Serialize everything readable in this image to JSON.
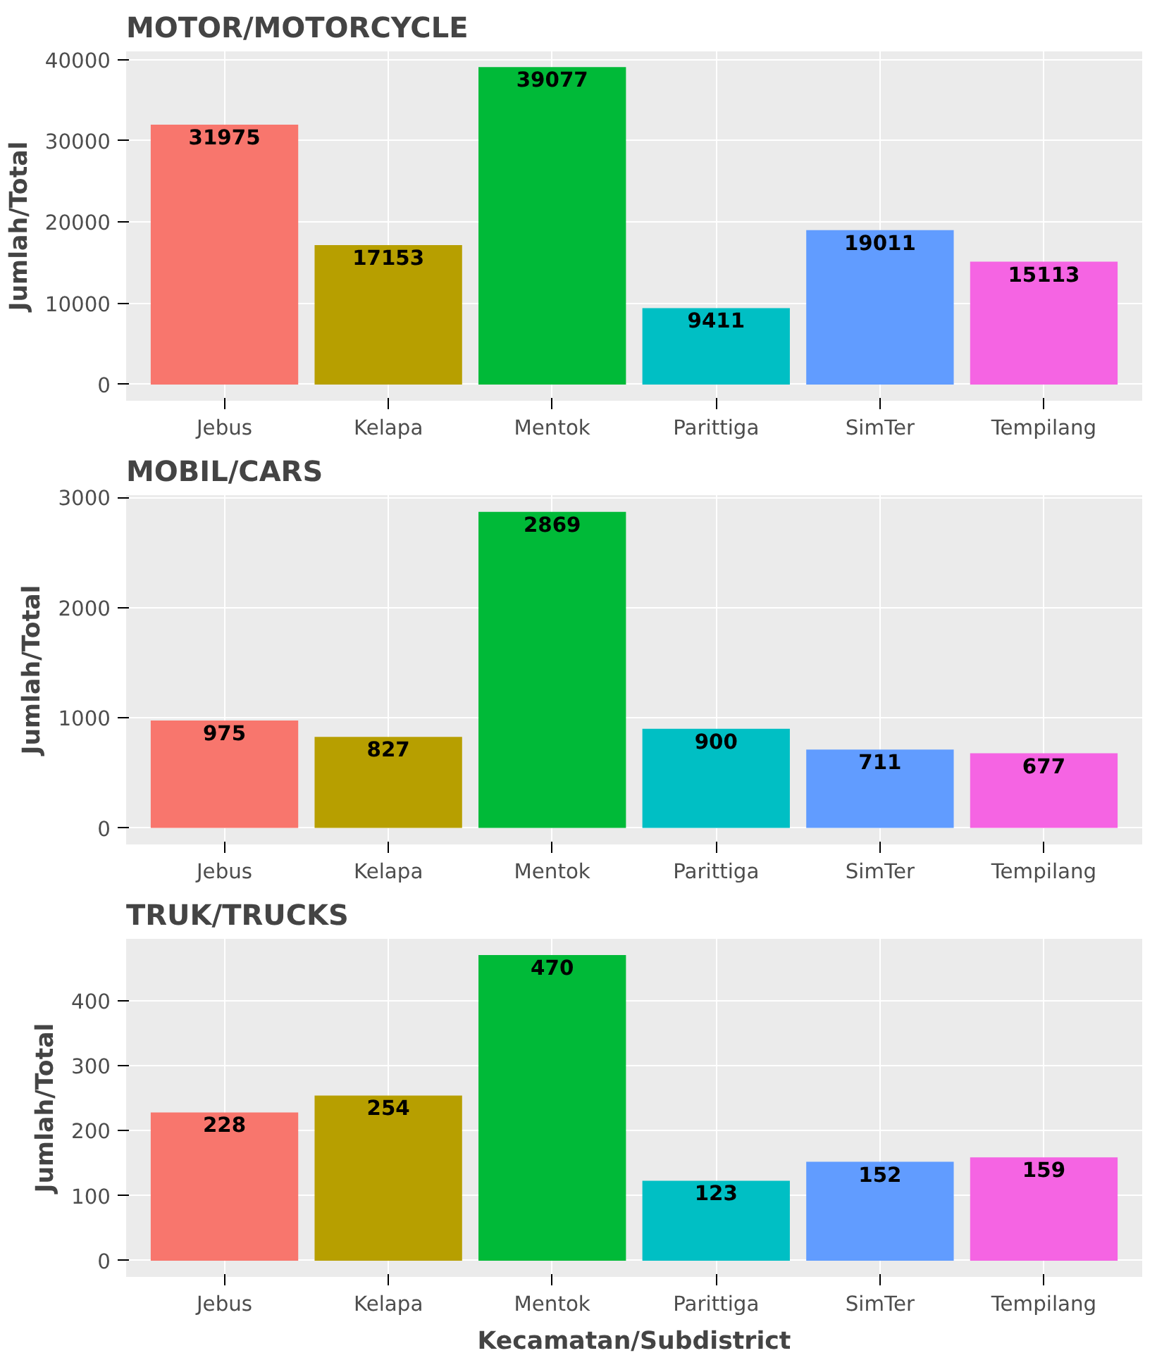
{
  "chart_data": [
    {
      "type": "bar",
      "title": "MOTOR/MOTORCYCLE",
      "ylabel": "Jumlah/Total",
      "categories": [
        "Jebus",
        "Kelapa",
        "Mentok",
        "Parittiga",
        "SimTer",
        "Tempilang"
      ],
      "values": [
        31975,
        17153,
        39077,
        9411,
        19011,
        15113
      ],
      "colors": [
        "#f8766d",
        "#b79f00",
        "#00ba38",
        "#00bfc4",
        "#619cff",
        "#f564e3"
      ],
      "ylim": [
        -2000,
        41000
      ],
      "yticks": [
        0,
        10000,
        20000,
        30000,
        40000
      ],
      "grid": true,
      "data_labels": true
    },
    {
      "type": "bar",
      "title": "MOBIL/CARS",
      "ylabel": "Jumlah/Total",
      "categories": [
        "Jebus",
        "Kelapa",
        "Mentok",
        "Parittiga",
        "SimTer",
        "Tempilang"
      ],
      "values": [
        975,
        827,
        2869,
        900,
        711,
        677
      ],
      "colors": [
        "#f8766d",
        "#b79f00",
        "#00ba38",
        "#00bfc4",
        "#619cff",
        "#f564e3"
      ],
      "ylim": [
        -150,
        3020
      ],
      "yticks": [
        0,
        1000,
        2000,
        3000
      ],
      "grid": true,
      "data_labels": true
    },
    {
      "type": "bar",
      "title": "TRUK/TRUCKS",
      "ylabel": "Jumlah/Total",
      "xlabel": "Kecamatan/Subdistrict",
      "categories": [
        "Jebus",
        "Kelapa",
        "Mentok",
        "Parittiga",
        "SimTer",
        "Tempilang"
      ],
      "values": [
        228,
        254,
        470,
        123,
        152,
        159
      ],
      "colors": [
        "#f8766d",
        "#b79f00",
        "#00ba38",
        "#00bfc4",
        "#619cff",
        "#f564e3"
      ],
      "ylim": [
        -25,
        495
      ],
      "yticks": [
        0,
        100,
        200,
        300,
        400
      ],
      "grid": true,
      "data_labels": true
    }
  ]
}
